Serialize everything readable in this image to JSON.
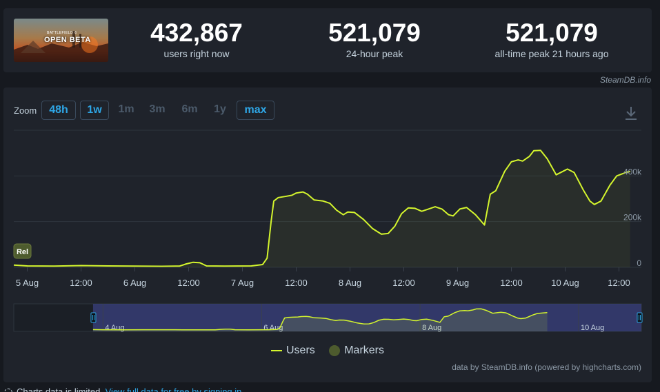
{
  "game": {
    "thumb_sub": "BATTLEFIELD 6",
    "thumb_title": "OPEN BETA"
  },
  "stats": [
    {
      "value": "432,867",
      "label": "users right now"
    },
    {
      "value": "521,079",
      "label": "24-hour peak"
    },
    {
      "value": "521,079",
      "label": "all-time peak 21 hours ago"
    }
  ],
  "credit_top": "SteamDB.info",
  "zoom": {
    "label": "Zoom",
    "options": [
      {
        "label": "48h",
        "active": true
      },
      {
        "label": "1w",
        "active": true
      },
      {
        "label": "1m",
        "active": false
      },
      {
        "label": "3m",
        "active": false
      },
      {
        "label": "6m",
        "active": false
      },
      {
        "label": "1y",
        "active": false
      },
      {
        "label": "max",
        "active": true
      }
    ]
  },
  "colors": {
    "accent": "#2ea6e6",
    "series": "#d4f52d",
    "marker": "#4d5b2e",
    "navigator_mask": "#3b4180"
  },
  "icons": {
    "download": "download-icon",
    "footer": "loading-icon"
  },
  "chart_data": {
    "type": "line",
    "x_unit": "hours since 5 Aug 00:00",
    "ylim": [
      0,
      600000
    ],
    "y_ticks": [
      0,
      200000,
      400000
    ],
    "y_tick_labels": [
      "0",
      "200k",
      "400k"
    ],
    "x_ticks": [
      {
        "x": 0,
        "label": "5 Aug"
      },
      {
        "x": 12,
        "label": "12:00"
      },
      {
        "x": 24,
        "label": "6 Aug"
      },
      {
        "x": 36,
        "label": "12:00"
      },
      {
        "x": 48,
        "label": "7 Aug"
      },
      {
        "x": 60,
        "label": "12:00"
      },
      {
        "x": 72,
        "label": "8 Aug"
      },
      {
        "x": 84,
        "label": "12:00"
      },
      {
        "x": 96,
        "label": "9 Aug"
      },
      {
        "x": 108,
        "label": "12:00"
      },
      {
        "x": 120,
        "label": "10 Aug"
      },
      {
        "x": 132,
        "label": "12:00"
      }
    ],
    "series": [
      {
        "name": "Users",
        "points": [
          [
            -3,
            10000
          ],
          [
            0,
            6000
          ],
          [
            6,
            5500
          ],
          [
            12,
            7500
          ],
          [
            18,
            6000
          ],
          [
            24,
            5000
          ],
          [
            30,
            4500
          ],
          [
            34,
            5500
          ],
          [
            35.5,
            15000
          ],
          [
            37,
            22000
          ],
          [
            38.5,
            20000
          ],
          [
            40,
            6000
          ],
          [
            44,
            5000
          ],
          [
            50,
            6000
          ],
          [
            52.5,
            12000
          ],
          [
            53.5,
            40000
          ],
          [
            54.4,
            200000
          ],
          [
            55,
            290000
          ],
          [
            56,
            305000
          ],
          [
            57.5,
            310000
          ],
          [
            59,
            315000
          ],
          [
            60,
            325000
          ],
          [
            61.5,
            330000
          ],
          [
            62.5,
            320000
          ],
          [
            64,
            295000
          ],
          [
            66,
            290000
          ],
          [
            67.5,
            280000
          ],
          [
            69,
            250000
          ],
          [
            70.5,
            230000
          ],
          [
            71.5,
            242000
          ],
          [
            73,
            240000
          ],
          [
            75,
            210000
          ],
          [
            77,
            170000
          ],
          [
            79,
            145000
          ],
          [
            80.5,
            148000
          ],
          [
            82,
            180000
          ],
          [
            83.5,
            235000
          ],
          [
            85,
            260000
          ],
          [
            86.5,
            258000
          ],
          [
            88,
            245000
          ],
          [
            89.5,
            255000
          ],
          [
            91,
            265000
          ],
          [
            92.5,
            255000
          ],
          [
            94,
            230000
          ],
          [
            95,
            225000
          ],
          [
            96.5,
            255000
          ],
          [
            98,
            262000
          ],
          [
            100,
            230000
          ],
          [
            102,
            185000
          ],
          [
            103.3,
            320000
          ],
          [
            104.5,
            335000
          ],
          [
            106.5,
            420000
          ],
          [
            108,
            462000
          ],
          [
            109.5,
            470000
          ],
          [
            110.5,
            465000
          ],
          [
            112,
            485000
          ],
          [
            113,
            510000
          ],
          [
            114.5,
            512000
          ],
          [
            116,
            475000
          ],
          [
            118,
            405000
          ],
          [
            119.5,
            420000
          ],
          [
            120.5,
            430000
          ],
          [
            122,
            415000
          ],
          [
            124,
            340000
          ],
          [
            125.5,
            290000
          ],
          [
            126.5,
            275000
          ],
          [
            128,
            290000
          ],
          [
            130,
            360000
          ],
          [
            131.5,
            400000
          ],
          [
            133.5,
            415000
          ],
          [
            134.5,
            420000
          ]
        ]
      }
    ],
    "markers": [
      {
        "label": "Rel"
      }
    ],
    "navigator_ticks": [
      {
        "x": 0,
        "label": "4 Aug"
      },
      {
        "x": 48,
        "label": "6 Aug"
      },
      {
        "x": 96,
        "label": "8 Aug"
      },
      {
        "x": 144,
        "label": "10 Aug"
      }
    ],
    "legend": [
      {
        "name": "Users",
        "kind": "line"
      },
      {
        "name": "Markers",
        "kind": "dot"
      }
    ],
    "legend_placement": "bottom-center",
    "grid": true
  },
  "credit_bottom": "data by SteamDB.info (powered by highcharts.com)",
  "footer": {
    "text": "Charts data is limited.",
    "link": "View full data for free by signing in"
  }
}
